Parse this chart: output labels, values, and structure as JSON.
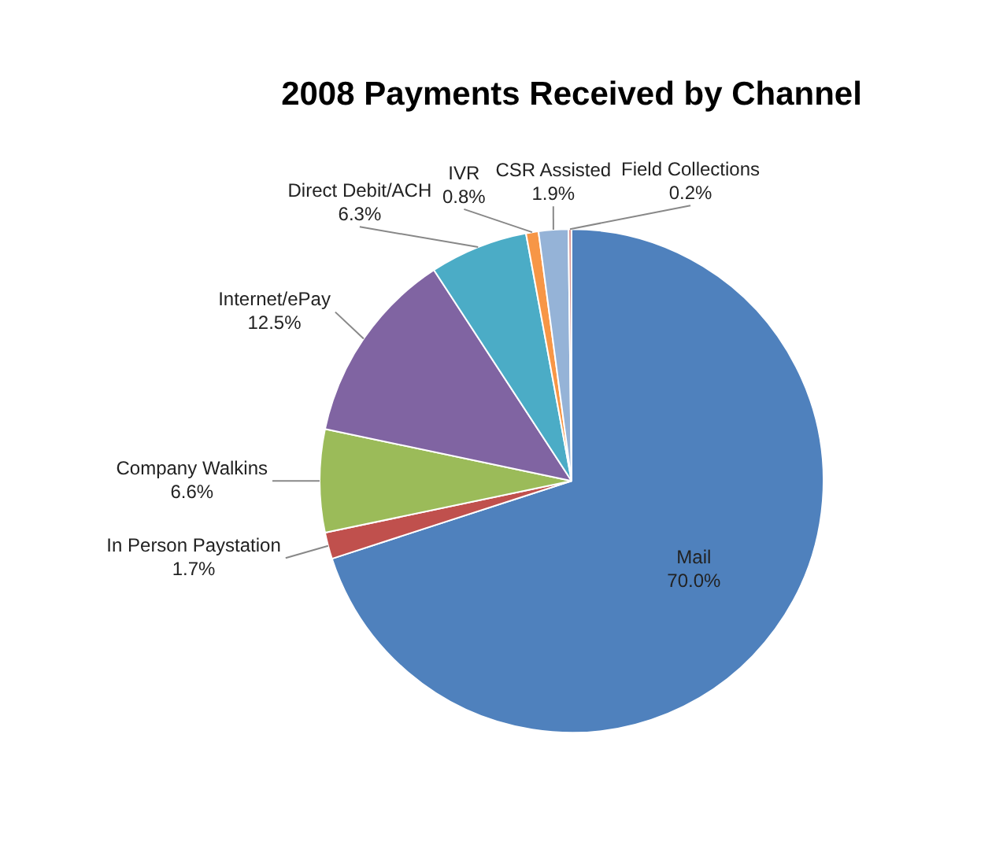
{
  "chart_data": {
    "type": "pie",
    "title": "2008 Payments Received by Channel",
    "categories": [
      "Mail",
      "In Person Paystation",
      "Company Walkins",
      "Internet/ePay",
      "Direct Debit/ACH",
      "IVR",
      "CSR Assisted",
      "Field Collections"
    ],
    "values": [
      70.0,
      1.7,
      6.6,
      12.5,
      6.3,
      0.8,
      1.9,
      0.2
    ],
    "value_labels": [
      "70.0%",
      "1.7%",
      "6.6%",
      "12.5%",
      "6.3%",
      "0.8%",
      "1.9%",
      "0.2%"
    ],
    "colors": [
      "#4f81bd",
      "#c0504d",
      "#9bbb59",
      "#8064a2",
      "#4bacc6",
      "#f79646",
      "#95b3d7",
      "#d99694"
    ],
    "legend": false
  }
}
